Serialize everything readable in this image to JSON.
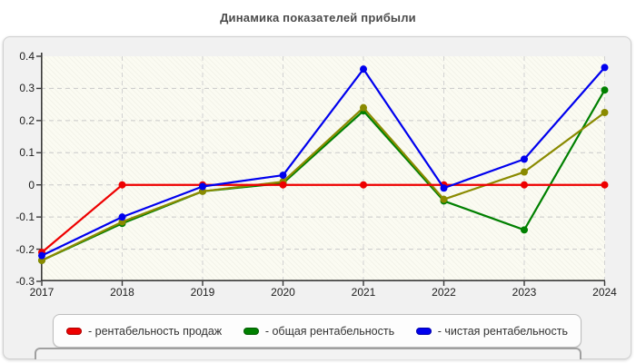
{
  "chart_data": {
    "type": "line",
    "title": "Динамика показателей прибыли",
    "categories": [
      "2017",
      "2018",
      "2019",
      "2020",
      "2021",
      "2022",
      "2023",
      "2024"
    ],
    "y_ticks": [
      0.4,
      0.3,
      0.2,
      0.1,
      0,
      -0.1,
      -0.2,
      -0.3
    ],
    "ylim": [
      -0.3,
      0.4
    ],
    "grid": true,
    "legend_position": "bottom",
    "draw_order": [
      1,
      2,
      0,
      3
    ],
    "series": [
      {
        "name": "рентабельность продаж",
        "color": "#ee0000",
        "values": [
          -0.21,
          0,
          0,
          0,
          0,
          0,
          0,
          0
        ]
      },
      {
        "name": "общая рентабельность",
        "color": "#008000",
        "values": [
          -0.235,
          -0.12,
          -0.02,
          0.005,
          0.23,
          -0.05,
          -0.14,
          0.295
        ]
      },
      {
        "name": "",
        "color": "#8a8a00",
        "values": [
          -0.235,
          -0.115,
          -0.02,
          0.01,
          0.24,
          -0.045,
          0.04,
          0.225
        ]
      },
      {
        "name": "чистая рентабельность",
        "color": "#0000ee",
        "values": [
          -0.22,
          -0.1,
          -0.005,
          0.03,
          0.36,
          -0.01,
          0.08,
          0.365
        ]
      }
    ]
  },
  "legend": {
    "items": [
      {
        "label": "- рентабельность продаж",
        "color": "#ee0000"
      },
      {
        "label": "- общая рентабельность",
        "color": "#008000"
      },
      {
        "label": "- чистая рентабельность",
        "color": "#0000ee"
      }
    ]
  }
}
